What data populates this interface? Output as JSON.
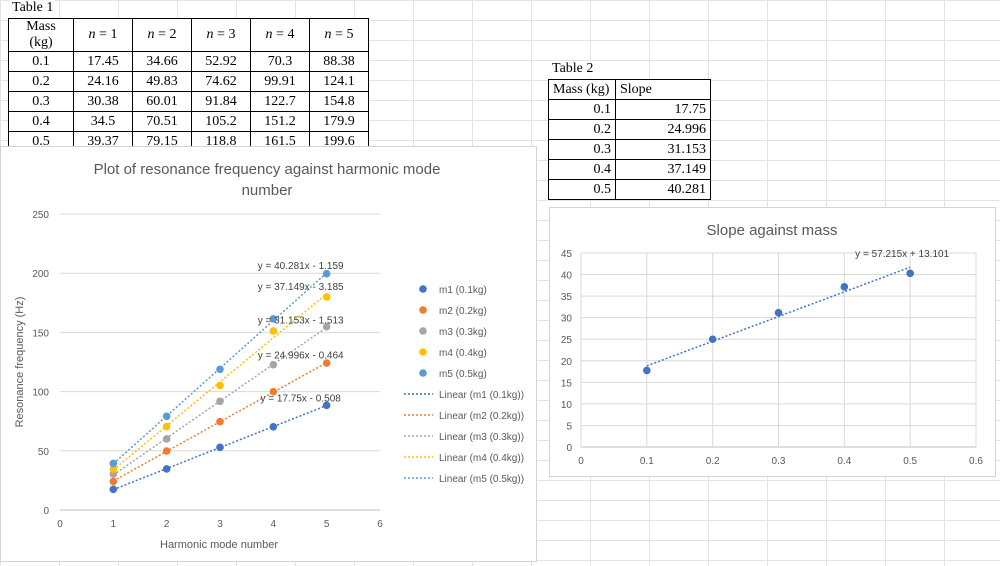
{
  "table1": {
    "caption": "Table 1",
    "headers": [
      "Mass (kg)",
      "n = 1",
      "n = 2",
      "n = 3",
      "n = 4",
      "n = 5"
    ],
    "rows": [
      [
        "0.1",
        "17.45",
        "34.66",
        "52.92",
        "70.3",
        "88.38"
      ],
      [
        "0.2",
        "24.16",
        "49.83",
        "74.62",
        "99.91",
        "124.1"
      ],
      [
        "0.3",
        "30.38",
        "60.01",
        "91.84",
        "122.7",
        "154.8"
      ],
      [
        "0.4",
        "34.5",
        "70.51",
        "105.2",
        "151.2",
        "179.9"
      ],
      [
        "0.5",
        "39.37",
        "79.15",
        "118.8",
        "161.5",
        "199.6"
      ]
    ]
  },
  "table2": {
    "caption": "Table 2",
    "headers": [
      "Mass (kg)",
      "Slope"
    ],
    "rows": [
      [
        "0.1",
        "17.75"
      ],
      [
        "0.2",
        "24.996"
      ],
      [
        "0.3",
        "31.153"
      ],
      [
        "0.4",
        "37.149"
      ],
      [
        "0.5",
        "40.281"
      ]
    ]
  },
  "chart_data": [
    {
      "type": "scatter",
      "title": "Plot of resonance frequency against harmonic mode number",
      "title_lines": [
        "Plot of resonance frequency against harmonic mode",
        "number"
      ],
      "xlabel": "Harmonic mode number",
      "ylabel": "Resonance frequency (Hz)",
      "xlim": [
        0,
        6
      ],
      "ylim": [
        0,
        250
      ],
      "xticks": [
        0,
        1,
        2,
        3,
        4,
        5,
        6
      ],
      "yticks": [
        0,
        50,
        100,
        150,
        200,
        250
      ],
      "grid": true,
      "legend": "right",
      "x": [
        1,
        2,
        3,
        4,
        5
      ],
      "series": [
        {
          "name": "m1 (0.1kg)",
          "color": "#4472c4",
          "values": [
            17.45,
            34.66,
            52.92,
            70.3,
            88.38
          ],
          "trend_name": "Linear (m1 (0.1kg))",
          "slope": 17.75,
          "intercept": -0.508,
          "equation": "y = 17.75x - 0.508"
        },
        {
          "name": "m2 (0.2kg)",
          "color": "#ed7d31",
          "values": [
            24.16,
            49.83,
            74.62,
            99.91,
            124.1
          ],
          "trend_name": "Linear (m2 (0.2kg))",
          "slope": 24.996,
          "intercept": -0.464,
          "equation": "y = 24.996x - 0.464"
        },
        {
          "name": "m3 (0.3kg)",
          "color": "#a5a5a5",
          "values": [
            30.38,
            60.01,
            91.84,
            122.7,
            154.8
          ],
          "trend_name": "Linear (m3 (0.3kg))",
          "slope": 31.153,
          "intercept": -1.513,
          "equation": "y = 31.153x - 1.513"
        },
        {
          "name": "m4 (0.4kg)",
          "color": "#ffc000",
          "values": [
            34.5,
            70.51,
            105.2,
            151.2,
            179.9
          ],
          "trend_name": "Linear (m4 (0.4kg))",
          "slope": 37.149,
          "intercept": -3.185,
          "equation": "y = 37.149x - 3.185"
        },
        {
          "name": "m5 (0.5kg)",
          "color": "#5b9bd5",
          "values": [
            39.37,
            79.15,
            118.8,
            161.5,
            199.6
          ],
          "trend_name": "Linear (m5 (0.5kg))",
          "slope": 40.281,
          "intercept": -1.159,
          "equation": "y = 40.281x - 1.159"
        }
      ]
    },
    {
      "type": "scatter",
      "title": "Slope against mass",
      "xlabel": "",
      "ylabel": "",
      "xlim": [
        0,
        0.6
      ],
      "ylim": [
        0,
        45
      ],
      "xticks": [
        "0",
        "0.1",
        "0.2",
        "0.3",
        "0.4",
        "0.5",
        "0.6"
      ],
      "yticks": [
        0,
        5,
        10,
        15,
        20,
        25,
        30,
        35,
        40,
        45
      ],
      "grid": true,
      "legend": "none",
      "color": "#4472c4",
      "x": [
        0.1,
        0.2,
        0.3,
        0.4,
        0.5
      ],
      "y": [
        17.75,
        24.996,
        31.153,
        37.149,
        40.281
      ],
      "trendline": {
        "slope": 57.215,
        "intercept": 13.101,
        "equation": "y = 57.215x + 13.101"
      }
    }
  ]
}
